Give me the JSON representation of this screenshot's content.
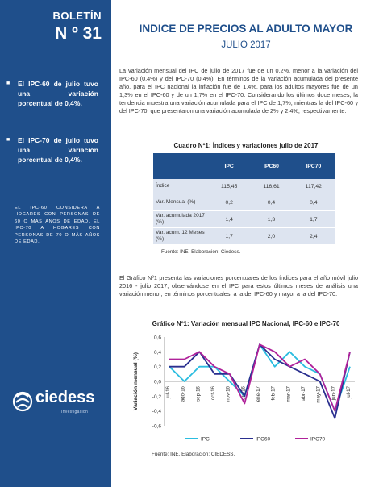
{
  "sidebar": {
    "label": "BOLETÍN",
    "number": "N º 31",
    "bullets": [
      "El IPC-60 de julio tuvo una variación porcentual de 0,4%.",
      "El IPC-70 de julio tuvo una variación porcentual de 0,4%."
    ],
    "note": "EL IPC-60 CONSIDERA A HOGARES CON PERSONAS DE 60 O MÁS AÑOS DE EDAD. EL IPC-70 A HOGARES CON PERSONAS DE 70 O MÁS AÑOS DE EDAD.",
    "logo_text": "ciedess",
    "logo_sub": "Investigación"
  },
  "header": {
    "title": "INDICE DE PRECIOS AL ADULTO MAYOR",
    "subtitle": "JULIO 2017"
  },
  "body": {
    "paragraph1": "La variación mensual del IPC de julio de 2017 fue de un 0,2%, menor a la variación del IPC-60 (0,4%) y del IPC-70 (0,4%). En términos de la variación acumulada del presente año, para el IPC nacional la inflación fue de 1,4%, para los adultos mayores fue de un 1,3% en el IPC-60 y de un 1,7% en el IPC-70. Considerando los últimos doce meses, la tendencia muestra una variación acumulada para el IPC de 1,7%, mientras la del IPC-60 y del IPC-70, que presentaron una variación acumulada de 2% y 2,4%, respectivamente.",
    "table_title": "Cuadro Nº1: Índices y variaciones julio de 2017",
    "table": {
      "headers": [
        "",
        "IPC",
        "IPC60",
        "IPC70"
      ],
      "rows": [
        [
          "Índice",
          "115,45",
          "116,61",
          "117,42"
        ],
        [
          "Var. Mensual (%)",
          "0,2",
          "0,4",
          "0,4"
        ],
        [
          "Var. acumulada 2017 (%)",
          "1,4",
          "1,3",
          "1,7"
        ],
        [
          "Var. acum. 12 Meses (%)",
          "1,7",
          "2,0",
          "2,4"
        ]
      ]
    },
    "source1": "Fuente: INE. Elaboración: Ciedess.",
    "paragraph2": "El Gráfico Nº1 presenta las variaciones porcentuales de los índices para el año móvil julio 2016 - julio 2017, observándose en el IPC para estos últimos meses de análisis una variación menor, en términos porcentuales, a la del IPC-60 y mayor a la del IPC-70.",
    "chart_title": "Gráfico Nº1: Variación mensual IPC Nacional, IPC-60 e IPC-70",
    "source2": "Fuente: INE. Elaboración: CIEDESS."
  },
  "chart_data": {
    "type": "line",
    "title": "Gráfico Nº1: Variación mensual IPC Nacional, IPC-60 e IPC-70",
    "xlabel": "",
    "ylabel": "Variación mensual (%)",
    "ylim": [
      -0.6,
      0.6
    ],
    "yticks": [
      "-0,6",
      "-0,4",
      "-0,2",
      "0,0",
      "0,2",
      "0,4",
      "0,6"
    ],
    "categories": [
      "jul-16",
      "ago-16",
      "sep-16",
      "oct-16",
      "nov-16",
      "dic-16",
      "ene-17",
      "feb-17",
      "mar-17",
      "abr-17",
      "may-17",
      "jun-17",
      "jul-17"
    ],
    "legend_position": "bottom",
    "grid": false,
    "series": [
      {
        "name": "IPC",
        "color": "#2bbde0",
        "values": [
          0.2,
          0.0,
          0.2,
          0.2,
          0.0,
          -0.2,
          0.5,
          0.2,
          0.4,
          0.2,
          0.1,
          -0.4,
          0.2
        ]
      },
      {
        "name": "IPC60",
        "color": "#2a2f8f",
        "values": [
          0.2,
          0.2,
          0.4,
          0.1,
          0.1,
          -0.2,
          0.5,
          0.3,
          0.2,
          0.1,
          0.0,
          -0.5,
          0.4
        ]
      },
      {
        "name": "IPC70",
        "color": "#b0229a",
        "values": [
          0.3,
          0.3,
          0.4,
          0.2,
          0.1,
          -0.3,
          0.5,
          0.4,
          0.2,
          0.3,
          0.1,
          -0.4,
          0.4
        ]
      }
    ]
  }
}
